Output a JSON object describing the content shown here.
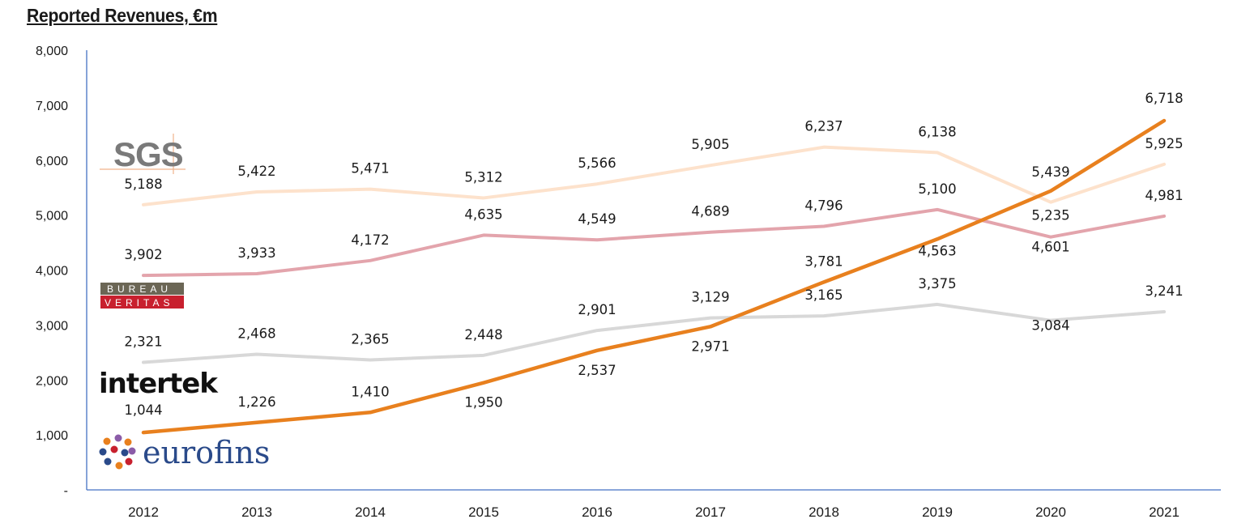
{
  "title": "Reported Revenues, €m",
  "colors": {
    "SGS": "#fde2cc",
    "Bureau Veritas": "#e3a4ac",
    "Intertek": "#d8d8d8",
    "Eurofins": "#e8801e",
    "axis": "#4472c4"
  },
  "logos": {
    "sgs": "SGS",
    "bv_top": "BUREAU",
    "bv_bottom": "VERITAS",
    "intertek": "intertek",
    "eurofins": "eurofins"
  },
  "chart_data": {
    "type": "line",
    "title": "Reported Revenues, €m",
    "xlabel": "",
    "ylabel": "",
    "ylim": [
      0,
      8000
    ],
    "yticks": [
      0,
      1000,
      2000,
      3000,
      4000,
      5000,
      6000,
      7000,
      8000
    ],
    "ytick_labels": [
      "-",
      "1,000",
      "2,000",
      "3,000",
      "4,000",
      "5,000",
      "6,000",
      "7,000",
      "8,000"
    ],
    "categories": [
      "2012",
      "2013",
      "2014",
      "2015",
      "2016",
      "2017",
      "2018",
      "2019",
      "2020",
      "2021"
    ],
    "grid": false,
    "legend": "logos at left",
    "series": [
      {
        "name": "SGS",
        "values": [
          5188,
          5422,
          5471,
          5312,
          5566,
          5905,
          6237,
          6138,
          5235,
          5925
        ],
        "labels": [
          "5,188",
          "5,422",
          "5,471",
          "5,312",
          "5,566",
          "5,905",
          "6,237",
          "6,138",
          "5,235",
          "5,925"
        ]
      },
      {
        "name": "Bureau Veritas",
        "values": [
          3902,
          3933,
          4172,
          4635,
          4549,
          4689,
          4796,
          5100,
          4601,
          4981
        ],
        "labels": [
          "3,902",
          "3,933",
          "4,172",
          "4,635",
          "4,549",
          "4,689",
          "4,796",
          "5,100",
          "4,601",
          "4,981"
        ]
      },
      {
        "name": "Intertek",
        "values": [
          2321,
          2468,
          2365,
          2448,
          2901,
          3129,
          3165,
          3375,
          3084,
          3241
        ],
        "labels": [
          "2,321",
          "2,468",
          "2,365",
          "2,448",
          "2,901",
          "3,129",
          "3,165",
          "3,375",
          "3,084",
          "3,241"
        ]
      },
      {
        "name": "Eurofins",
        "values": [
          1044,
          1226,
          1410,
          1950,
          2537,
          2971,
          3781,
          4563,
          5439,
          6718
        ],
        "labels": [
          "1,044",
          "1,226",
          "1,410",
          "1,950",
          "2,537",
          "2,971",
          "3,781",
          "4,563",
          "5,439",
          "6,718"
        ]
      }
    ]
  }
}
